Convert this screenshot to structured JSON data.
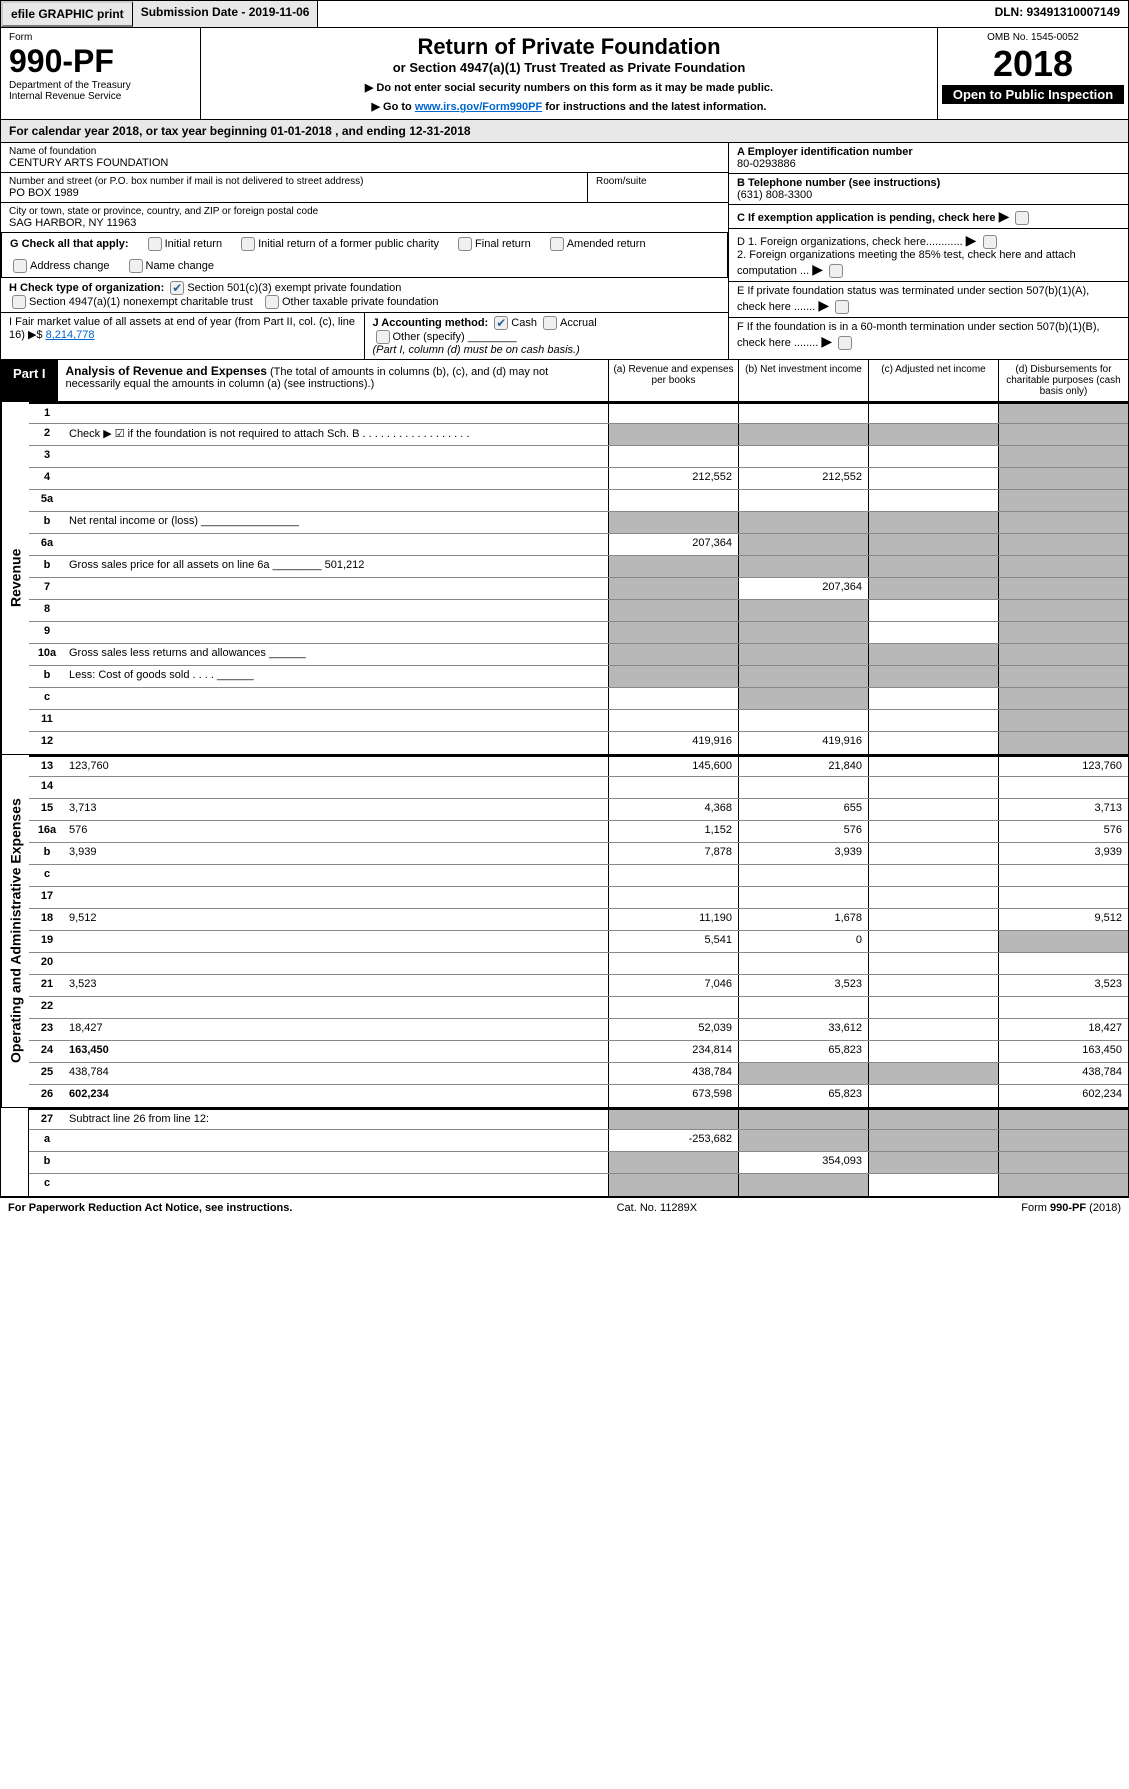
{
  "top": {
    "efile": "efile GRAPHIC print",
    "submission": "Submission Date - 2019-11-06",
    "dln": "DLN: 93491310007149"
  },
  "header": {
    "form_word": "Form",
    "form_num": "990-PF",
    "dept": "Department of the Treasury",
    "irs": "Internal Revenue Service",
    "title": "Return of Private Foundation",
    "subtitle": "or Section 4947(a)(1) Trust Treated as Private Foundation",
    "instr1": "▶ Do not enter social security numbers on this form as it may be made public.",
    "instr2_pre": "▶ Go to ",
    "instr2_link": "www.irs.gov/Form990PF",
    "instr2_post": " for instructions and the latest information.",
    "omb": "OMB No. 1545-0052",
    "year": "2018",
    "inspect": "Open to Public Inspection"
  },
  "cal_year": {
    "pre": "For calendar year 2018, or tax year beginning ",
    "begin": "01-01-2018",
    "mid": " , and ending ",
    "end": "12-31-2018"
  },
  "info": {
    "name_label": "Name of foundation",
    "name": "CENTURY ARTS FOUNDATION",
    "addr_label": "Number and street (or P.O. box number if mail is not delivered to street address)",
    "addr": "PO BOX 1989",
    "room_label": "Room/suite",
    "city_label": "City or town, state or province, country, and ZIP or foreign postal code",
    "city": "SAG HARBOR, NY  11963",
    "ein_label": "A Employer identification number",
    "ein": "80-0293886",
    "tel_label": "B Telephone number (see instructions)",
    "tel": "(631) 808-3300",
    "c_label": "C If exemption application is pending, check here",
    "d1": "D 1. Foreign organizations, check here............",
    "d2": "2. Foreign organizations meeting the 85% test, check here and attach computation ...",
    "e_label": "E If private foundation status was terminated under section 507(b)(1)(A), check here .......",
    "f_label": "F If the foundation is in a 60-month termination under section 507(b)(1)(B), check here ........"
  },
  "g": {
    "label": "G Check all that apply:",
    "opts": [
      "Initial return",
      "Initial return of a former public charity",
      "Final return",
      "Amended return",
      "Address change",
      "Name change"
    ]
  },
  "h": {
    "label": "H Check type of organization:",
    "opt1": "Section 501(c)(3) exempt private foundation",
    "opt2": "Section 4947(a)(1) nonexempt charitable trust",
    "opt3": "Other taxable private foundation"
  },
  "i": {
    "label": "I Fair market value of all assets at end of year (from Part II, col. (c), line 16) ▶$ ",
    "value": "8,214,778"
  },
  "j": {
    "label": "J Accounting method:",
    "cash": "Cash",
    "accrual": "Accrual",
    "other": "Other (specify)",
    "note": "(Part I, column (d) must be on cash basis.)"
  },
  "part1": {
    "label": "Part I",
    "title": "Analysis of Revenue and Expenses",
    "note": "(The total of amounts in columns (b), (c), and (d) may not necessarily equal the amounts in column (a) (see instructions).)",
    "cols": {
      "a": "(a) Revenue and expenses per books",
      "b": "(b) Net investment income",
      "c": "(c) Adjusted net income",
      "d": "(d) Disbursements for charitable purposes (cash basis only)"
    }
  },
  "revenue_label": "Revenue",
  "expenses_label": "Operating and Administrative Expenses",
  "rows": [
    {
      "n": "1",
      "d": "",
      "a": "",
      "b": "",
      "c": "",
      "sd": true
    },
    {
      "n": "2",
      "d": "Check ▶ ☑ if the foundation is not required to attach Sch. B  . . . . . . . . . . . . . . . . . .",
      "noabcd": true
    },
    {
      "n": "3",
      "d": "",
      "a": "",
      "b": "",
      "c": "",
      "sd": true
    },
    {
      "n": "4",
      "d": "",
      "a": "212,552",
      "b": "212,552",
      "c": "",
      "sd": true
    },
    {
      "n": "5a",
      "d": "",
      "a": "",
      "b": "",
      "c": "",
      "sd": true
    },
    {
      "n": "b",
      "d": "Net rental income or (loss) ________________",
      "noabcd": true
    },
    {
      "n": "6a",
      "d": "",
      "a": "207,364",
      "b": "",
      "c": "",
      "sb": true,
      "sc": true,
      "sd": true
    },
    {
      "n": "b",
      "d": "Gross sales price for all assets on line 6a ________ 501,212",
      "noabcd": true
    },
    {
      "n": "7",
      "d": "",
      "a": "",
      "b": "207,364",
      "c": "",
      "sa": true,
      "sc": true,
      "sd": true
    },
    {
      "n": "8",
      "d": "",
      "a": "",
      "b": "",
      "c": "",
      "sa": true,
      "sb": true,
      "sd": true
    },
    {
      "n": "9",
      "d": "",
      "a": "",
      "b": "",
      "c": "",
      "sa": true,
      "sb": true,
      "sd": true
    },
    {
      "n": "10a",
      "d": "Gross sales less returns and allowances  ______",
      "noabcd": true
    },
    {
      "n": "b",
      "d": "Less: Cost of goods sold      .  .  .  .  ______",
      "noabcd": true
    },
    {
      "n": "c",
      "d": "",
      "a": "",
      "b": "",
      "c": "",
      "sb": true,
      "sd": true
    },
    {
      "n": "11",
      "d": "",
      "a": "",
      "b": "",
      "c": "",
      "sd": true
    },
    {
      "n": "12",
      "d": "",
      "a": "419,916",
      "b": "419,916",
      "c": "",
      "sd": true,
      "bold": true
    }
  ],
  "exp_rows": [
    {
      "n": "13",
      "d": "123,760",
      "a": "145,600",
      "b": "21,840",
      "c": ""
    },
    {
      "n": "14",
      "d": "",
      "a": "",
      "b": "",
      "c": ""
    },
    {
      "n": "15",
      "d": "3,713",
      "a": "4,368",
      "b": "655",
      "c": ""
    },
    {
      "n": "16a",
      "d": "576",
      "a": "1,152",
      "b": "576",
      "c": ""
    },
    {
      "n": "b",
      "d": "3,939",
      "a": "7,878",
      "b": "3,939",
      "c": ""
    },
    {
      "n": "c",
      "d": "",
      "a": "",
      "b": "",
      "c": ""
    },
    {
      "n": "17",
      "d": "",
      "a": "",
      "b": "",
      "c": ""
    },
    {
      "n": "18",
      "d": "9,512",
      "a": "11,190",
      "b": "1,678",
      "c": ""
    },
    {
      "n": "19",
      "d": "",
      "a": "5,541",
      "b": "0",
      "c": "",
      "sd": true
    },
    {
      "n": "20",
      "d": "",
      "a": "",
      "b": "",
      "c": ""
    },
    {
      "n": "21",
      "d": "3,523",
      "a": "7,046",
      "b": "3,523",
      "c": ""
    },
    {
      "n": "22",
      "d": "",
      "a": "",
      "b": "",
      "c": ""
    },
    {
      "n": "23",
      "d": "18,427",
      "a": "52,039",
      "b": "33,612",
      "c": ""
    },
    {
      "n": "24",
      "d": "163,450",
      "a": "234,814",
      "b": "65,823",
      "c": "",
      "bold": true
    },
    {
      "n": "25",
      "d": "438,784",
      "a": "438,784",
      "b": "",
      "c": "",
      "sb": true,
      "sc": true
    },
    {
      "n": "26",
      "d": "602,234",
      "a": "673,598",
      "b": "65,823",
      "c": "",
      "bold": true
    }
  ],
  "final_rows": [
    {
      "n": "27",
      "d": "Subtract line 26 from line 12:",
      "noabcd": true
    },
    {
      "n": "a",
      "d": "",
      "a": "-253,682",
      "b": "",
      "c": "",
      "sb": true,
      "sc": true,
      "sd": true,
      "bold": true
    },
    {
      "n": "b",
      "d": "",
      "a": "",
      "b": "354,093",
      "c": "",
      "sa": true,
      "sc": true,
      "sd": true,
      "bold": true
    },
    {
      "n": "c",
      "d": "",
      "a": "",
      "b": "",
      "c": "",
      "sa": true,
      "sb": true,
      "sd": true,
      "bold": true
    }
  ],
  "footer": {
    "left": "For Paperwork Reduction Act Notice, see instructions.",
    "mid": "Cat. No. 11289X",
    "right": "Form 990-PF (2018)"
  }
}
